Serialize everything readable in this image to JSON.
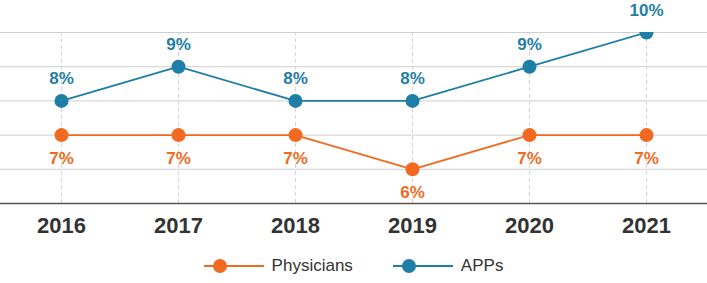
{
  "chart_data": {
    "type": "line",
    "categories": [
      "2016",
      "2017",
      "2018",
      "2019",
      "2020",
      "2021"
    ],
    "series": [
      {
        "name": "Physicians",
        "color": "#f26a21",
        "values": [
          7,
          7,
          7,
          6,
          7,
          7
        ],
        "value_labels": [
          "7%",
          "7%",
          "7%",
          "6%",
          "7%",
          "7%"
        ]
      },
      {
        "name": "APPs",
        "color": "#1f7ea6",
        "values": [
          8,
          9,
          8,
          8,
          9,
          10
        ],
        "value_labels": [
          "8%",
          "9%",
          "8%",
          "8%",
          "9%",
          "10%"
        ]
      }
    ],
    "ylim": [
      5,
      10
    ],
    "yticks": [
      5,
      6,
      7,
      8,
      9,
      10
    ],
    "grid": true,
    "data_labels": true,
    "tick_labels": "x",
    "legend": "bottom",
    "marker": "circle"
  }
}
